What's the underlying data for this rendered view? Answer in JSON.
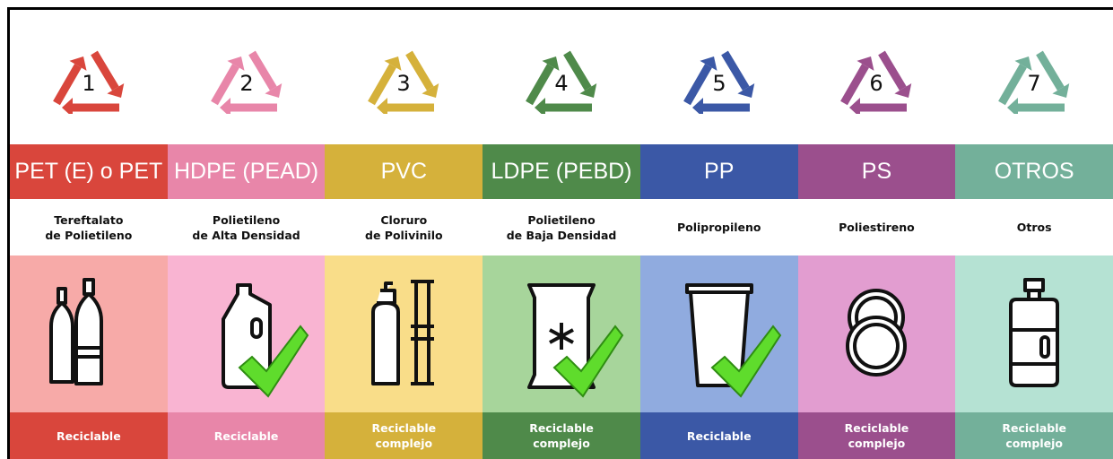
{
  "columns": [
    {
      "number": 1,
      "code": "PET (E) o PET",
      "name": [
        "Tereftalato",
        "de Polietileno"
      ],
      "status": [
        "Reciclable"
      ],
      "color": "#d9463c",
      "light": "#f7aaa8"
    },
    {
      "number": 2,
      "code": "HDPE (PEAD)",
      "name": [
        "Polietileno",
        "de Alta Densidad"
      ],
      "status": [
        "Reciclable"
      ],
      "color": "#e886a9",
      "light": "#f9b4d2"
    },
    {
      "number": 3,
      "code": "PVC",
      "name": [
        "Cloruro",
        "de Polivinilo"
      ],
      "status": [
        "Reciclable",
        "complejo"
      ],
      "color": "#d5b13b",
      "light": "#f9dd89"
    },
    {
      "number": 4,
      "code": "LDPE (PEBD)",
      "name": [
        "Polietileno",
        "de Baja Densidad"
      ],
      "status": [
        "Reciclable",
        "complejo"
      ],
      "color": "#4f8a4a",
      "light": "#a7d59b"
    },
    {
      "number": 5,
      "code": "PP",
      "name": [
        "Polipropileno"
      ],
      "status": [
        "Reciclable"
      ],
      "color": "#3b58a6",
      "light": "#90abdf"
    },
    {
      "number": 6,
      "code": "PS",
      "name": [
        "Poliestireno"
      ],
      "status": [
        "Reciclable",
        "complejo"
      ],
      "color": "#9b4f8d",
      "light": "#e29dd0"
    },
    {
      "number": 7,
      "code": "OTROS",
      "name": [
        "Otros"
      ],
      "status": [
        "Reciclable",
        "complejo"
      ],
      "color": "#73b09a",
      "light": "#b5e2d3"
    }
  ]
}
